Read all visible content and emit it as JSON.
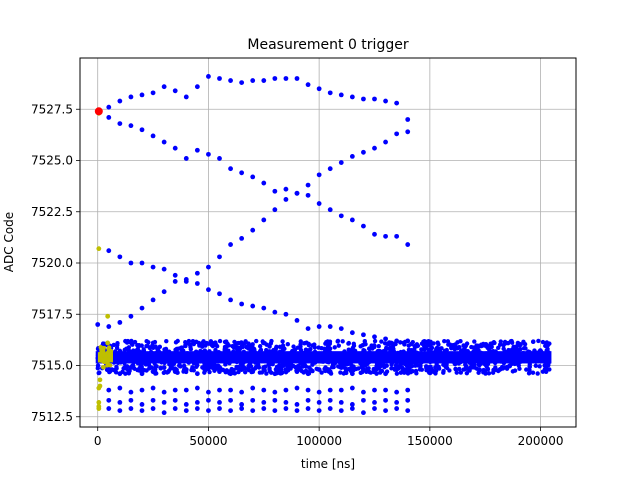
{
  "chart_data": {
    "type": "scatter",
    "title": "Measurement 0 trigger",
    "xlabel": "time [ns]",
    "ylabel": "ADC Code",
    "xlim": [
      -8000,
      216000
    ],
    "ylim": [
      7512.0,
      7530.0
    ],
    "x_ticks": [
      0,
      50000,
      100000,
      150000,
      200000
    ],
    "x_tick_labels": [
      "0",
      "50000",
      "100000",
      "150000",
      "200000"
    ],
    "y_ticks": [
      7512.5,
      7515.0,
      7517.5,
      7520.0,
      7522.5,
      7525.0,
      7527.5
    ],
    "y_tick_labels": [
      "7512.5",
      "7515.0",
      "7517.5",
      "7520.0",
      "7522.5",
      "7525.0",
      "7527.5"
    ],
    "grid": true,
    "colors": {
      "blue": "#0000ff",
      "olive": "#bfbf00",
      "red": "#ff0000",
      "grid": "#b0b0b0"
    },
    "series": [
      {
        "color": "#0000ff",
        "points": [
          [
            0,
            7517.0
          ],
          [
            5000,
            7527.6
          ],
          [
            10000,
            7527.9
          ],
          [
            15000,
            7528.1
          ],
          [
            20000,
            7528.2
          ],
          [
            25000,
            7528.3
          ],
          [
            30000,
            7528.6
          ],
          [
            35000,
            7528.4
          ],
          [
            40000,
            7528.1
          ],
          [
            45000,
            7528.6
          ],
          [
            50000,
            7529.1
          ],
          [
            55000,
            7529.0
          ],
          [
            60000,
            7528.9
          ],
          [
            65000,
            7528.8
          ],
          [
            70000,
            7528.9
          ],
          [
            75000,
            7528.9
          ],
          [
            80000,
            7529.0
          ],
          [
            85000,
            7529.0
          ],
          [
            90000,
            7529.0
          ],
          [
            95000,
            7528.7
          ],
          [
            100000,
            7528.5
          ],
          [
            105000,
            7528.3
          ],
          [
            110000,
            7528.2
          ],
          [
            115000,
            7528.1
          ],
          [
            120000,
            7528.0
          ],
          [
            125000,
            7528.0
          ],
          [
            130000,
            7527.9
          ],
          [
            135000,
            7527.8
          ],
          [
            140000,
            7527.0
          ],
          [
            5000,
            7527.1
          ],
          [
            10000,
            7526.8
          ],
          [
            15000,
            7526.7
          ],
          [
            20000,
            7526.5
          ],
          [
            25000,
            7526.2
          ],
          [
            30000,
            7525.9
          ],
          [
            35000,
            7525.6
          ],
          [
            40000,
            7525.1
          ],
          [
            45000,
            7525.5
          ],
          [
            50000,
            7525.3
          ],
          [
            55000,
            7525.1
          ],
          [
            60000,
            7524.6
          ],
          [
            65000,
            7524.4
          ],
          [
            70000,
            7524.2
          ],
          [
            75000,
            7523.9
          ],
          [
            80000,
            7523.5
          ],
          [
            85000,
            7523.6
          ],
          [
            90000,
            7523.4
          ],
          [
            95000,
            7523.8
          ],
          [
            100000,
            7524.3
          ],
          [
            105000,
            7524.6
          ],
          [
            110000,
            7524.9
          ],
          [
            115000,
            7525.2
          ],
          [
            120000,
            7525.4
          ],
          [
            125000,
            7525.6
          ],
          [
            130000,
            7525.9
          ],
          [
            135000,
            7526.3
          ],
          [
            140000,
            7526.4
          ],
          [
            5000,
            7520.6
          ],
          [
            10000,
            7520.3
          ],
          [
            15000,
            7520.0
          ],
          [
            20000,
            7520.0
          ],
          [
            25000,
            7519.8
          ],
          [
            30000,
            7519.7
          ],
          [
            35000,
            7519.4
          ],
          [
            40000,
            7519.1
          ],
          [
            45000,
            7519.5
          ],
          [
            50000,
            7519.8
          ],
          [
            55000,
            7520.3
          ],
          [
            60000,
            7520.9
          ],
          [
            65000,
            7521.2
          ],
          [
            70000,
            7521.6
          ],
          [
            75000,
            7522.1
          ],
          [
            80000,
            7522.6
          ],
          [
            85000,
            7523.1
          ],
          [
            90000,
            7523.4
          ],
          [
            95000,
            7523.3
          ],
          [
            100000,
            7522.9
          ],
          [
            105000,
            7522.6
          ],
          [
            110000,
            7522.3
          ],
          [
            115000,
            7522.1
          ],
          [
            120000,
            7521.8
          ],
          [
            125000,
            7521.4
          ],
          [
            130000,
            7521.3
          ],
          [
            135000,
            7521.3
          ],
          [
            140000,
            7520.9
          ],
          [
            5000,
            7516.9
          ],
          [
            10000,
            7517.1
          ],
          [
            15000,
            7517.4
          ],
          [
            20000,
            7517.8
          ],
          [
            25000,
            7518.2
          ],
          [
            30000,
            7518.6
          ],
          [
            35000,
            7519.1
          ],
          [
            40000,
            7519.2
          ],
          [
            45000,
            7519.0
          ],
          [
            50000,
            7518.7
          ],
          [
            55000,
            7518.5
          ],
          [
            60000,
            7518.2
          ],
          [
            65000,
            7518.0
          ],
          [
            70000,
            7517.9
          ],
          [
            75000,
            7517.8
          ],
          [
            80000,
            7517.6
          ],
          [
            85000,
            7517.5
          ],
          [
            90000,
            7517.2
          ],
          [
            95000,
            7516.8
          ],
          [
            100000,
            7516.9
          ],
          [
            105000,
            7516.9
          ],
          [
            110000,
            7516.8
          ],
          [
            115000,
            7516.6
          ],
          [
            120000,
            7516.5
          ],
          [
            125000,
            7516.4
          ],
          [
            130000,
            7516.3
          ],
          [
            135000,
            7516.2
          ],
          [
            140000,
            7516.2
          ],
          [
            5000,
            7514.8
          ],
          [
            10000,
            7514.6
          ],
          [
            15000,
            7514.9
          ],
          [
            20000,
            7514.6
          ],
          [
            25000,
            7514.7
          ],
          [
            30000,
            7514.9
          ],
          [
            35000,
            7514.7
          ],
          [
            40000,
            7514.8
          ],
          [
            45000,
            7514.6
          ],
          [
            50000,
            7514.9
          ],
          [
            55000,
            7514.7
          ],
          [
            60000,
            7514.6
          ],
          [
            65000,
            7514.8
          ],
          [
            70000,
            7514.7
          ],
          [
            75000,
            7514.9
          ],
          [
            80000,
            7514.6
          ],
          [
            85000,
            7514.8
          ],
          [
            90000,
            7514.7
          ],
          [
            95000,
            7514.6
          ],
          [
            100000,
            7514.8
          ],
          [
            105000,
            7514.7
          ],
          [
            110000,
            7514.9
          ],
          [
            115000,
            7514.6
          ],
          [
            120000,
            7514.8
          ],
          [
            125000,
            7514.7
          ],
          [
            130000,
            7514.6
          ],
          [
            135000,
            7514.8
          ],
          [
            140000,
            7514.7
          ],
          [
            5000,
            7513.8
          ],
          [
            10000,
            7513.9
          ],
          [
            15000,
            7513.7
          ],
          [
            20000,
            7513.8
          ],
          [
            25000,
            7513.9
          ],
          [
            30000,
            7513.7
          ],
          [
            35000,
            7513.8
          ],
          [
            40000,
            7513.8
          ],
          [
            45000,
            7513.9
          ],
          [
            50000,
            7513.7
          ],
          [
            55000,
            7513.8
          ],
          [
            60000,
            7513.8
          ],
          [
            65000,
            7513.7
          ],
          [
            70000,
            7513.9
          ],
          [
            75000,
            7513.8
          ],
          [
            80000,
            7513.7
          ],
          [
            85000,
            7513.8
          ],
          [
            90000,
            7513.9
          ],
          [
            95000,
            7513.8
          ],
          [
            100000,
            7513.7
          ],
          [
            105000,
            7513.8
          ],
          [
            110000,
            7513.8
          ],
          [
            115000,
            7513.9
          ],
          [
            120000,
            7513.7
          ],
          [
            125000,
            7513.8
          ],
          [
            130000,
            7513.8
          ],
          [
            135000,
            7513.7
          ],
          [
            140000,
            7513.8
          ],
          [
            5000,
            7513.3
          ],
          [
            10000,
            7513.2
          ],
          [
            15000,
            7513.3
          ],
          [
            20000,
            7513.1
          ],
          [
            25000,
            7513.3
          ],
          [
            30000,
            7513.2
          ],
          [
            35000,
            7513.3
          ],
          [
            40000,
            7513.1
          ],
          [
            45000,
            7513.2
          ],
          [
            50000,
            7513.3
          ],
          [
            55000,
            7513.2
          ],
          [
            60000,
            7513.3
          ],
          [
            65000,
            7513.1
          ],
          [
            70000,
            7513.3
          ],
          [
            75000,
            7513.2
          ],
          [
            80000,
            7513.3
          ],
          [
            85000,
            7513.2
          ],
          [
            90000,
            7513.1
          ],
          [
            95000,
            7513.3
          ],
          [
            100000,
            7513.2
          ],
          [
            105000,
            7513.3
          ],
          [
            110000,
            7513.2
          ],
          [
            115000,
            7513.1
          ],
          [
            120000,
            7513.3
          ],
          [
            125000,
            7513.2
          ],
          [
            130000,
            7513.3
          ],
          [
            135000,
            7513.2
          ],
          [
            140000,
            7513.3
          ],
          [
            5000,
            7512.9
          ],
          [
            10000,
            7512.8
          ],
          [
            15000,
            7512.9
          ],
          [
            20000,
            7512.8
          ],
          [
            25000,
            7512.9
          ],
          [
            30000,
            7512.7
          ],
          [
            35000,
            7512.9
          ],
          [
            40000,
            7512.8
          ],
          [
            45000,
            7512.9
          ],
          [
            50000,
            7512.8
          ],
          [
            55000,
            7512.9
          ],
          [
            60000,
            7512.8
          ],
          [
            65000,
            7512.9
          ],
          [
            70000,
            7512.8
          ],
          [
            75000,
            7512.9
          ],
          [
            80000,
            7512.8
          ],
          [
            85000,
            7512.9
          ],
          [
            90000,
            7512.8
          ],
          [
            95000,
            7512.9
          ],
          [
            100000,
            7512.8
          ],
          [
            105000,
            7512.9
          ],
          [
            110000,
            7512.8
          ],
          [
            115000,
            7512.9
          ],
          [
            120000,
            7512.7
          ],
          [
            125000,
            7512.9
          ],
          [
            130000,
            7512.8
          ],
          [
            135000,
            7512.9
          ],
          [
            140000,
            7512.8
          ]
        ],
        "band": {
          "x_range": [
            0,
            204000
          ],
          "y_center": 7515.4,
          "y_spread": 0.6,
          "y_extremes": [
            7514.6,
            7516.2
          ],
          "density": "dense"
        }
      },
      {
        "color": "#bfbf00",
        "points": [
          [
            500,
            7527.3
          ],
          [
            500,
            7520.7
          ],
          [
            500,
            7513.9
          ],
          [
            500,
            7513.2
          ],
          [
            500,
            7513.0
          ],
          [
            500,
            7512.9
          ],
          [
            1000,
            7514.3
          ],
          [
            1000,
            7514.0
          ],
          [
            4500,
            7517.4
          ],
          [
            4500,
            7516.1
          ],
          [
            4500,
            7515.6
          ],
          [
            4500,
            7515.2
          ],
          [
            3000,
            7515.5
          ],
          [
            3500,
            7515.3
          ]
        ],
        "band": {
          "x_range": [
            1000,
            6000
          ],
          "y_center": 7515.4,
          "y_spread": 0.5,
          "y_extremes": [
            7514.9,
            7515.9
          ],
          "density": "dense"
        }
      },
      {
        "color": "#ff0000",
        "points": [
          [
            500,
            7527.4
          ]
        ]
      }
    ]
  }
}
